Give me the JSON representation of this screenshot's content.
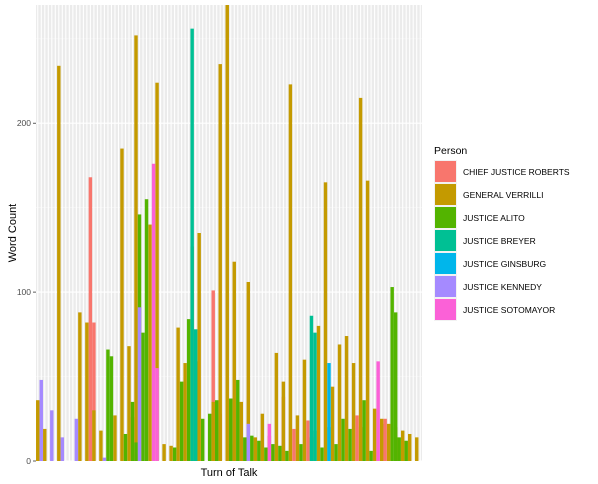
{
  "chart_data": {
    "type": "bar",
    "title": "",
    "xlabel": "Turn of Talk",
    "ylabel": "Word Count",
    "ylim": [
      0,
      270
    ],
    "yticks": [
      0,
      100,
      200
    ],
    "grid": true,
    "legend": {
      "title": "Person",
      "position": "right",
      "items": [
        {
          "name": "CHIEF JUSTICE ROBERTS",
          "color": "#F8766D"
        },
        {
          "name": "GENERAL VERRILLI",
          "color": "#C49A00"
        },
        {
          "name": "JUSTICE ALITO",
          "color": "#53B400"
        },
        {
          "name": "JUSTICE BREYER",
          "color": "#00C094"
        },
        {
          "name": "JUSTICE GINSBURG",
          "color": "#00B6EB"
        },
        {
          "name": "JUSTICE KENNEDY",
          "color": "#A58AFF"
        },
        {
          "name": "JUSTICE SOTOMAYOR",
          "color": "#FB61D7"
        }
      ]
    },
    "series": [
      {
        "name": "CHIEF JUSTICE ROBERTS",
        "color": "#F8766D",
        "x": [
          16,
          17,
          28,
          29,
          51,
          53,
          56,
          71,
          74,
          78,
          92,
          93,
          99,
          100
        ],
        "values": [
          168,
          82,
          26,
          4,
          101,
          28,
          10,
          38,
          19,
          24,
          27,
          20,
          22,
          25
        ]
      },
      {
        "name": "GENERAL VERRILLI",
        "color": "#C49A00",
        "x": [
          1,
          3,
          7,
          13,
          15,
          17,
          19,
          23,
          25,
          27,
          29,
          33,
          35,
          37,
          39,
          41,
          43,
          45,
          47,
          51,
          53,
          55,
          57,
          59,
          61,
          63,
          65,
          67,
          69,
          71,
          73,
          75,
          77,
          79,
          81,
          83,
          85,
          87,
          89,
          91,
          93,
          95,
          97,
          99,
          101,
          103,
          105,
          107,
          109
        ],
        "values": [
          36,
          19,
          234,
          88,
          82,
          30,
          18,
          27,
          185,
          68,
          252,
          140,
          224,
          10,
          9,
          79,
          58,
          127,
          135,
          35,
          235,
          272,
          118,
          35,
          106,
          14,
          28,
          15,
          64,
          47,
          223,
          27,
          60,
          14,
          80,
          165,
          44,
          69,
          74,
          58,
          215,
          166,
          31,
          25,
          22,
          20,
          18,
          16,
          14
        ]
      },
      {
        "name": "JUSTICE ALITO",
        "color": "#53B400",
        "x": [
          21,
          22,
          26,
          28,
          29,
          30,
          31,
          32,
          40,
          42,
          44,
          46,
          48,
          50,
          52,
          56,
          58,
          60,
          62,
          64,
          66,
          68,
          70,
          72,
          76,
          80,
          82,
          84,
          86,
          88,
          90,
          94,
          96,
          102,
          103,
          104,
          106
        ],
        "values": [
          66,
          62,
          16,
          35,
          11,
          146,
          76,
          155,
          8,
          47,
          84,
          59,
          25,
          28,
          36,
          37,
          48,
          14,
          15,
          12,
          8,
          10,
          9,
          6,
          10,
          18,
          8,
          20,
          10,
          25,
          19,
          36,
          6,
          103,
          88,
          14,
          12
        ]
      },
      {
        "name": "JUSTICE BREYER",
        "color": "#00C094",
        "x": [
          45,
          46,
          79,
          80
        ],
        "values": [
          256,
          78,
          86,
          76
        ]
      },
      {
        "name": "JUSTICE GINSBURG",
        "color": "#00B6EB",
        "x": [
          84
        ],
        "values": [
          58
        ]
      },
      {
        "name": "JUSTICE KENNEDY",
        "color": "#A58AFF",
        "x": [
          2,
          5,
          8,
          12,
          20,
          30,
          61
        ],
        "values": [
          48,
          30,
          14,
          25,
          2,
          91,
          22
        ]
      },
      {
        "name": "JUSTICE SOTOMAYOR",
        "color": "#FB61D7",
        "x": [
          34,
          35,
          67,
          98
        ],
        "values": [
          176,
          55,
          22,
          59
        ]
      }
    ]
  }
}
